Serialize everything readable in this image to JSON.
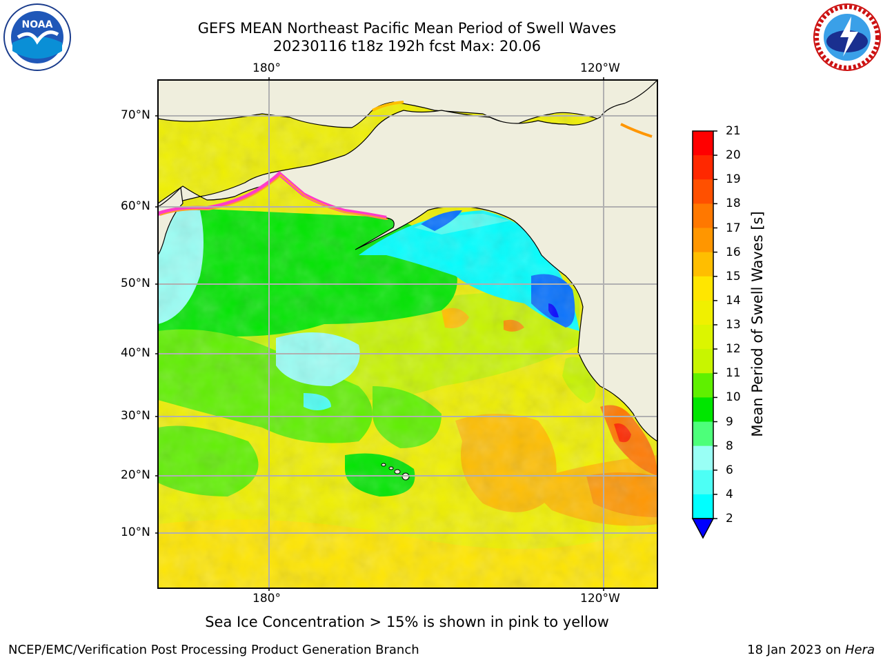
{
  "title": {
    "line1": "GEFS MEAN Northeast Pacific Mean Period of Swell Waves",
    "line2": "20230116 t18z 192h fcst   Max: 20.06"
  },
  "logos": {
    "noaa_icon": "noaa-logo",
    "noaa_text": "NOAA",
    "nws_icon": "national-weather-service-logo"
  },
  "map": {
    "lon_labels_top": [
      "180°",
      "120°W"
    ],
    "lon_labels_bottom": [
      "180°",
      "120°W"
    ],
    "lat_labels": [
      "70°N",
      "60°N",
      "50°N",
      "40°N",
      "30°N",
      "20°N",
      "10°N"
    ],
    "land_color": "#efeedd",
    "grid_color": "#b0b0b0"
  },
  "colorbar": {
    "label": "Mean Period of Swell Waves [s]",
    "ticks": [
      "21",
      "20",
      "19",
      "18",
      "17",
      "16",
      "15",
      "14",
      "13",
      "12",
      "11",
      "10",
      "9",
      "8",
      "6",
      "4",
      "2"
    ],
    "colors": [
      "#ff0000",
      "#ff2800",
      "#ff5000",
      "#ff7800",
      "#ff9600",
      "#ffbe00",
      "#ffe600",
      "#f0f000",
      "#dcf500",
      "#c8f500",
      "#5ff000",
      "#00e600",
      "#4dff7a",
      "#99fff5",
      "#4dfff5",
      "#00ffff",
      "#00d2ff",
      "#006eff",
      "#0000ff"
    ]
  },
  "note": "Sea Ice Concentration > 15% is shown in pink to yellow",
  "footer": {
    "left": "NCEP/EMC/Verification Post Processing Product Generation Branch",
    "right_prefix": "18 Jan 2023 on ",
    "right_host": "Hera"
  }
}
